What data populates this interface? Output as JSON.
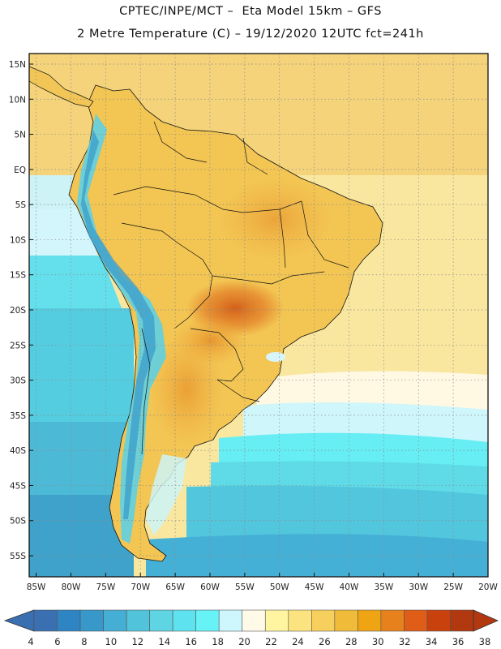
{
  "header": {
    "line1": "CPTEC/INPE/MCT –  Eta Model 15km – GFS",
    "line2": "2 Metre Temperature (C) – 19/12/2020 12UTC fct=241h"
  },
  "map": {
    "lat_labels": [
      "15N",
      "10N",
      "5N",
      "EQ",
      "5S",
      "10S",
      "15S",
      "20S",
      "25S",
      "30S",
      "35S",
      "40S",
      "45S",
      "50S",
      "55S"
    ],
    "lon_labels": [
      "85W",
      "80W",
      "75W",
      "70W",
      "65W",
      "60W",
      "55W",
      "50W",
      "45W",
      "40W",
      "35W",
      "30W",
      "25W",
      "20W"
    ],
    "lon_range": [
      -86,
      -20
    ],
    "lat_range": [
      -58,
      16.5
    ]
  },
  "colorbar": {
    "labels": [
      "4",
      "6",
      "8",
      "10",
      "12",
      "14",
      "16",
      "18",
      "20",
      "22",
      "24",
      "26",
      "28",
      "30",
      "32",
      "34",
      "36",
      "38"
    ],
    "colors": [
      "#3a6fb2",
      "#2f85c3",
      "#3798c9",
      "#45aed5",
      "#51c3db",
      "#5fd4e3",
      "#5fe2ef",
      "#66f2f6",
      "#cdf7fc",
      "#fff9e8",
      "#fff4a0",
      "#fbe47f",
      "#f6cf5c",
      "#f0bb39",
      "#efa414",
      "#e6811c",
      "#df5d16",
      "#c9420e",
      "#b23810"
    ]
  },
  "regions": [
    "South America",
    "Pacific Ocean",
    "Atlantic Ocean",
    "Caribbean Sea"
  ]
}
